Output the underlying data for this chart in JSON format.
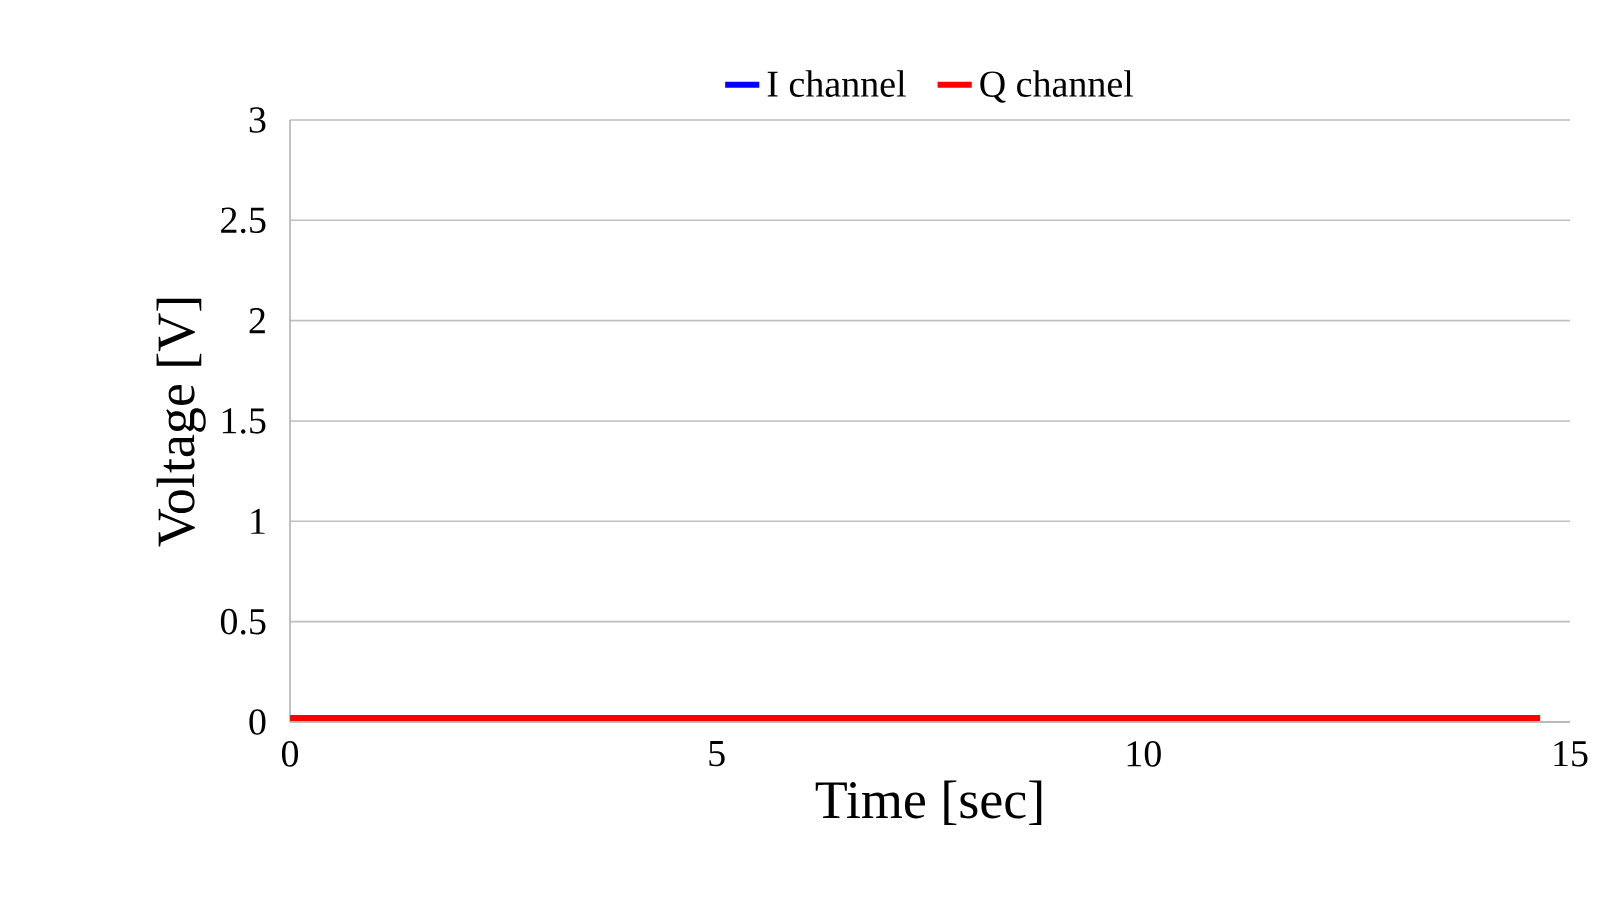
{
  "chart_data": {
    "type": "line",
    "xlabel": "Time [sec]",
    "ylabel": "Voltage [V]",
    "xlim": [
      0,
      15
    ],
    "xticks": [
      0,
      5,
      10,
      15
    ],
    "ylim": [
      0,
      3
    ],
    "yticks": [
      0,
      0.5,
      1,
      1.5,
      2,
      2.5,
      3
    ],
    "grid": "y",
    "legend": "top",
    "line_style": "solid",
    "marker": "none",
    "x": [
      0,
      14.65
    ],
    "series": [
      {
        "name": "I channel",
        "color": "#0000ff",
        "values": [
          null,
          null
        ]
      },
      {
        "name": "Q channel",
        "color": "#ff0000",
        "values": [
          0.02,
          0.02
        ]
      }
    ]
  }
}
